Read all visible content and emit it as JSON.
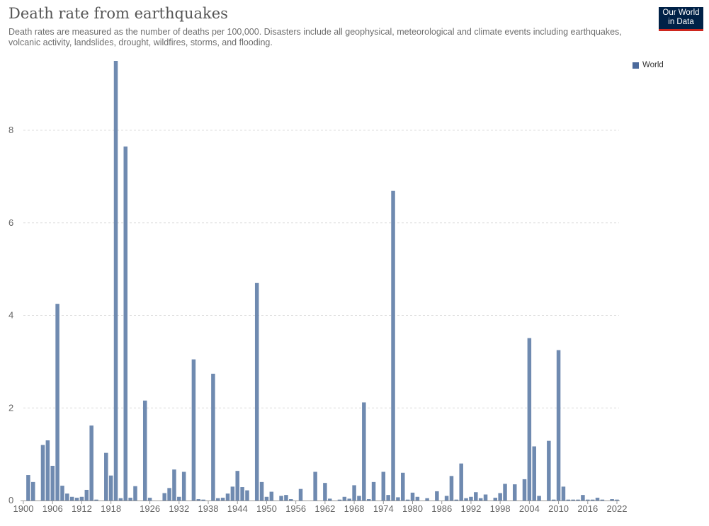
{
  "header": {
    "title": "Death rate from earthquakes",
    "subtitle": "Death rates are measured as the number of deaths per 100,000. Disasters include all geophysical, meteorological and climate events including earthquakes, volcanic activity, landslides, drought, wildfires, storms, and flooding.",
    "logo_line1": "Our World",
    "logo_line2": "in Data"
  },
  "legend": {
    "label": "World"
  },
  "colors": {
    "bar": "#6f8ab0",
    "legend": "#4c6a9c",
    "grid": "#dddddd",
    "axis": "#999999"
  },
  "chart_data": {
    "type": "bar",
    "title": "Death rate from earthquakes",
    "xlabel": "",
    "ylabel": "",
    "ylim": [
      0,
      9.5
    ],
    "yticks": [
      0,
      2,
      4,
      6,
      8
    ],
    "xticks": [
      1900,
      1906,
      1912,
      1918,
      1926,
      1932,
      1938,
      1944,
      1950,
      1956,
      1962,
      1968,
      1974,
      1980,
      1986,
      1992,
      1998,
      2004,
      2010,
      2016,
      2022
    ],
    "grid": "horizontal dashed",
    "legend_position": "top-right",
    "series": [
      {
        "name": "World",
        "x": [
          1901,
          1902,
          1904,
          1905,
          1906,
          1907,
          1908,
          1909,
          1910,
          1911,
          1912,
          1913,
          1914,
          1915,
          1917,
          1918,
          1919,
          1920,
          1921,
          1922,
          1923,
          1925,
          1926,
          1929,
          1930,
          1931,
          1932,
          1933,
          1935,
          1936,
          1937,
          1939,
          1940,
          1941,
          1942,
          1943,
          1944,
          1945,
          1946,
          1948,
          1949,
          1950,
          1951,
          1953,
          1954,
          1955,
          1957,
          1960,
          1962,
          1963,
          1965,
          1966,
          1967,
          1968,
          1969,
          1970,
          1971,
          1972,
          1974,
          1975,
          1976,
          1977,
          1978,
          1979,
          1980,
          1981,
          1983,
          1985,
          1987,
          1988,
          1989,
          1990,
          1991,
          1992,
          1993,
          1994,
          1995,
          1997,
          1998,
          1999,
          2001,
          2003,
          2004,
          2005,
          2006,
          2008,
          2009,
          2010,
          2011,
          2012,
          2013,
          2014,
          2015,
          2016,
          2017,
          2018,
          2019,
          2021,
          2022
        ],
        "values": [
          0.55,
          0.4,
          1.2,
          1.3,
          0.75,
          4.25,
          0.32,
          0.15,
          0.08,
          0.06,
          0.08,
          0.23,
          1.62,
          0.02,
          1.03,
          0.54,
          9.5,
          0.05,
          7.65,
          0.06,
          0.31,
          2.16,
          0.06,
          0.16,
          0.27,
          0.67,
          0.08,
          0.62,
          3.05,
          0.03,
          0.02,
          2.74,
          0.05,
          0.06,
          0.15,
          0.3,
          0.64,
          0.29,
          0.22,
          4.7,
          0.4,
          0.08,
          0.19,
          0.1,
          0.12,
          0.03,
          0.25,
          0.62,
          0.38,
          0.04,
          0.02,
          0.08,
          0.04,
          0.33,
          0.1,
          2.12,
          0.03,
          0.4,
          0.62,
          0.12,
          6.69,
          0.07,
          0.6,
          0.02,
          0.17,
          0.08,
          0.05,
          0.2,
          0.1,
          0.53,
          0.02,
          0.8,
          0.05,
          0.08,
          0.18,
          0.05,
          0.13,
          0.06,
          0.16,
          0.36,
          0.35,
          0.46,
          3.51,
          1.17,
          0.1,
          1.29,
          0.02,
          3.25,
          0.3,
          0.02,
          0.02,
          0.02,
          0.12,
          0.02,
          0.02,
          0.06,
          0.02,
          0.03,
          0.02
        ]
      }
    ]
  }
}
